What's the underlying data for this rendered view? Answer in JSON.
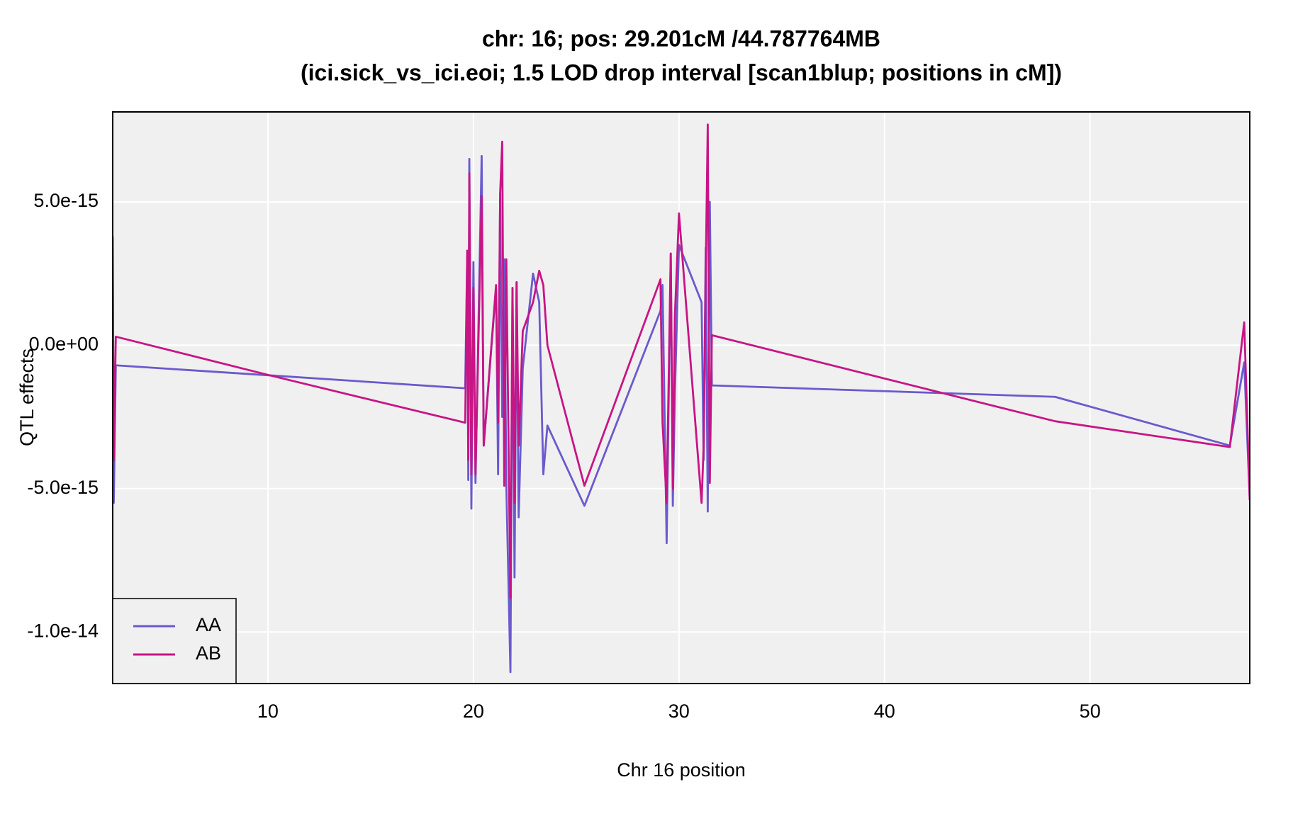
{
  "chart_data": {
    "type": "line",
    "title": [
      "chr: 16; pos: 29.201cM /44.787764MB",
      "(ici.sick_vs_ici.eoi; 1.5 LOD drop interval [scan1blup; positions in cM])"
    ],
    "xlabel": "Chr 16 position",
    "ylabel": "QTL effects",
    "x": [
      2.45,
      2.5,
      2.6,
      10.1,
      19.6,
      19.7,
      19.75,
      19.8,
      19.9,
      20.0,
      20.1,
      20.4,
      20.5,
      21.1,
      21.2,
      21.3,
      21.4,
      21.5,
      21.6,
      21.8,
      21.9,
      22.0,
      22.1,
      22.2,
      22.4,
      22.9,
      23.2,
      23.4,
      23.6,
      25.4,
      29.1,
      29.2,
      29.4,
      29.6,
      29.7,
      29.8,
      30.0,
      31.1,
      31.2,
      31.3,
      31.4,
      31.5,
      31.6,
      48.3,
      56.8,
      57.5,
      57.77
    ],
    "series": [
      {
        "name": "AA",
        "color": "#6a5acd",
        "values": [
          3e-15,
          -5.5e-15,
          -7e-16,
          -1.05e-15,
          -1.5e-15,
          3.3e-15,
          -4.7e-15,
          6.5e-15,
          -5.7e-15,
          2.9e-15,
          -4.8e-15,
          6.6e-15,
          -3.5e-15,
          2e-15,
          -4.5e-15,
          5.3e-15,
          -2.5e-15,
          3e-15,
          -4.9e-15,
          -1.14e-14,
          2e-15,
          -8.1e-15,
          2.2e-15,
          -6e-15,
          -8e-16,
          2.5e-15,
          1.5e-15,
          -4.5e-15,
          -2.8e-15,
          -5.6e-15,
          1.2e-15,
          2.1e-15,
          -6.9e-15,
          3.2e-15,
          -5.6e-15,
          -1.7e-15,
          3.5e-15,
          1.5e-15,
          -4e-15,
          3.4e-15,
          -5.8e-15,
          5e-15,
          -1.4e-15,
          -1.8e-15,
          -3.5e-15,
          -6e-16,
          -5.4e-15
        ]
      },
      {
        "name": "AB",
        "color": "#c71585",
        "values": [
          3.8e-15,
          -4e-15,
          3e-16,
          -1.05e-15,
          -2.7e-15,
          3.3e-15,
          -4e-15,
          6e-15,
          -4.5e-15,
          2e-15,
          -4.5e-15,
          5.2e-15,
          -3.5e-15,
          2.1e-15,
          -2.7e-15,
          5.3e-15,
          7.1e-15,
          -4.9e-15,
          3e-15,
          -8.8e-15,
          2e-15,
          -5.5e-15,
          2.2e-15,
          -3.5e-15,
          5e-16,
          1.5e-15,
          2.6e-15,
          2.1e-15,
          0.0,
          -4.9e-15,
          2.3e-15,
          -2.7e-15,
          -5.5e-15,
          3.2e-15,
          -5e-15,
          1e-15,
          4.6e-15,
          -5.5e-15,
          -3.5e-15,
          2.5e-15,
          7.7e-15,
          -4.8e-15,
          3.5e-16,
          -2.65e-15,
          -3.55e-15,
          8e-16,
          -5.4e-15
        ]
      }
    ],
    "xlim": [
      2.45,
      57.77
    ],
    "xticks": [
      10,
      20,
      30,
      40,
      50
    ],
    "ylim": [
      -1.18e-14,
      8.14e-15
    ],
    "yticks": [
      {
        "value": -1e-14,
        "label": "-1.0e-14"
      },
      {
        "value": -5e-15,
        "label": "-5.0e-15"
      },
      {
        "value": 0,
        "label": "0.0e+00"
      },
      {
        "value": 5e-15,
        "label": "5.0e-15"
      }
    ],
    "grid": true,
    "legend": "bottom-left"
  }
}
